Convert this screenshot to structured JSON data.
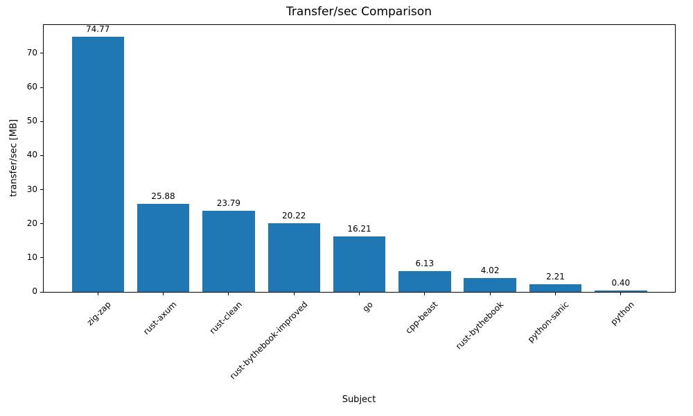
{
  "figure": {
    "title": "Transfer/sec Comparison",
    "xlabel": "Subject",
    "ylabel": "transfer/sec [MB]"
  },
  "chart_data": {
    "type": "bar",
    "title": "Transfer/sec Comparison",
    "xlabel": "Subject",
    "ylabel": "transfer/sec [MB]",
    "categories": [
      "zig-zap",
      "rust-axum",
      "rust-clean",
      "rust-bythebook-improved",
      "go",
      "cpp-beast",
      "rust-bythebook",
      "python-sanic",
      "python"
    ],
    "values": [
      74.77,
      25.88,
      23.79,
      20.22,
      16.21,
      6.13,
      4.02,
      2.21,
      0.4
    ],
    "value_labels": [
      "74.77",
      "25.88",
      "23.79",
      "20.22",
      "16.21",
      "6.13",
      "4.02",
      "2.21",
      "0.40"
    ],
    "bar_color": "#1f77b4",
    "axis_color": "#000000",
    "text_color": "#000000",
    "ylim": [
      0,
      78.5
    ],
    "yticks": [
      0,
      10,
      20,
      30,
      40,
      50,
      60,
      70
    ],
    "x_tick_rotation_deg": 45,
    "grid": false,
    "legend": null
  }
}
